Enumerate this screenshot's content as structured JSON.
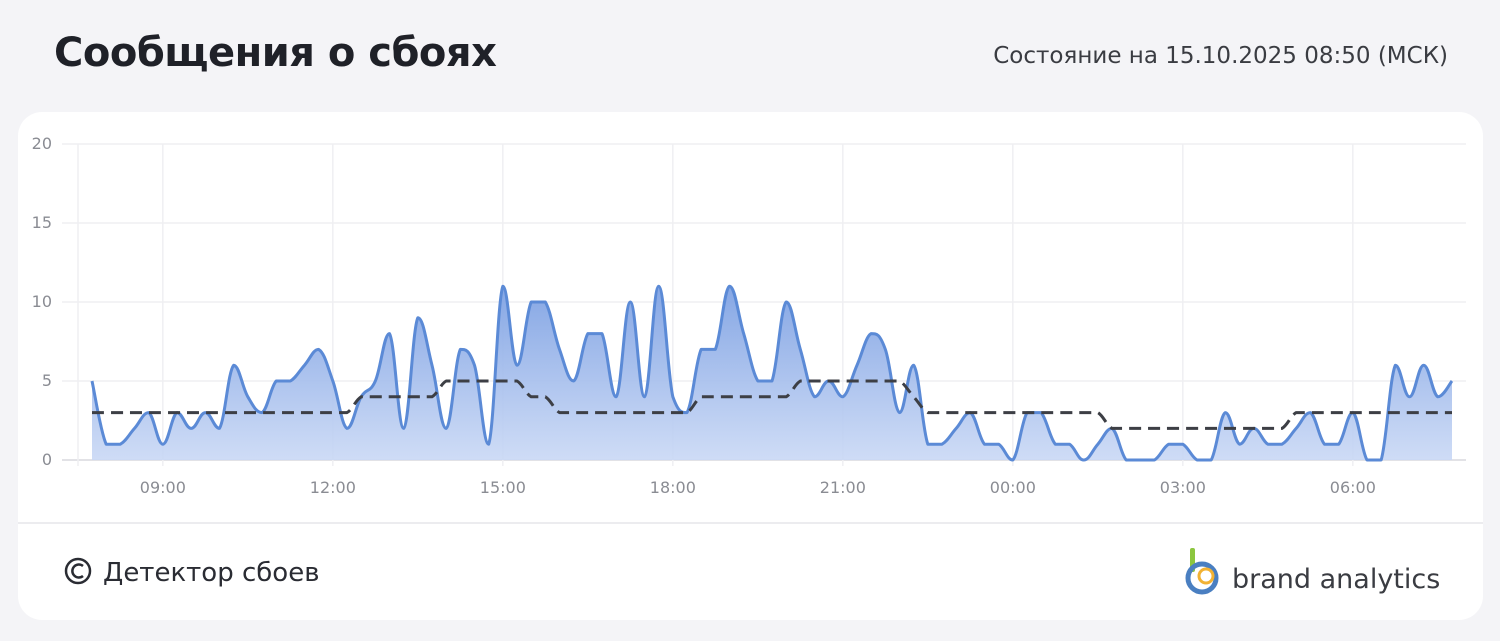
{
  "header": {
    "title": "Сообщения о сбоях",
    "status": "Состояние на 15.10.2025 08:50 (МСК)"
  },
  "chart_data": {
    "type": "line",
    "x": [
      "07:45",
      "08:00",
      "08:15",
      "08:30",
      "08:45",
      "09:00",
      "09:15",
      "09:30",
      "09:45",
      "10:00",
      "10:15",
      "10:30",
      "10:45",
      "11:00",
      "11:15",
      "11:30",
      "11:45",
      "12:00",
      "12:15",
      "12:30",
      "12:45",
      "13:00",
      "13:15",
      "13:30",
      "13:45",
      "14:00",
      "14:15",
      "14:30",
      "14:45",
      "15:00",
      "15:15",
      "15:30",
      "15:45",
      "16:00",
      "16:15",
      "16:30",
      "16:45",
      "17:00",
      "17:15",
      "17:30",
      "17:45",
      "18:00",
      "18:15",
      "18:30",
      "18:45",
      "19:00",
      "19:15",
      "19:30",
      "19:45",
      "20:00",
      "20:15",
      "20:30",
      "20:45",
      "21:00",
      "21:15",
      "21:30",
      "21:45",
      "22:00",
      "22:15",
      "22:30",
      "22:45",
      "23:00",
      "23:15",
      "23:30",
      "23:45",
      "00:00",
      "00:15",
      "00:30",
      "00:45",
      "01:00",
      "01:15",
      "01:30",
      "01:45",
      "02:00",
      "02:15",
      "02:30",
      "02:45",
      "03:00",
      "03:15",
      "03:30",
      "03:45",
      "04:00",
      "04:15",
      "04:30",
      "04:45",
      "05:00",
      "05:15",
      "05:30",
      "05:45",
      "06:00",
      "06:15",
      "06:30",
      "06:45",
      "07:00",
      "07:15",
      "07:30",
      "07:45"
    ],
    "xticks": [
      "09:00",
      "12:00",
      "15:00",
      "18:00",
      "21:00",
      "00:00",
      "03:00",
      "06:00"
    ],
    "ylim": [
      0,
      20
    ],
    "yticks": [
      0,
      5,
      10,
      15,
      20
    ],
    "grid": true,
    "series": [
      {
        "color": "#5b8ad6",
        "fill": true,
        "dashed": false,
        "values": [
          5,
          1,
          1,
          2,
          3,
          1,
          3,
          2,
          3,
          2,
          6,
          4,
          3,
          5,
          5,
          6,
          7,
          5,
          2,
          4,
          5,
          8,
          2,
          9,
          6,
          2,
          7,
          6,
          1,
          11,
          6,
          10,
          10,
          7,
          5,
          8,
          8,
          4,
          10,
          4,
          11,
          4,
          3,
          7,
          7,
          11,
          8,
          5,
          5,
          10,
          7,
          4,
          5,
          4,
          6,
          8,
          7,
          3,
          6,
          1,
          1,
          2,
          3,
          1,
          1,
          0,
          3,
          3,
          1,
          1,
          0,
          1,
          2,
          0,
          0,
          0,
          1,
          1,
          0,
          0,
          3,
          1,
          2,
          1,
          1,
          2,
          3,
          1,
          1,
          3,
          0,
          0,
          6,
          4,
          6,
          4,
          5
        ]
      },
      {
        "color": "#3d3f45",
        "fill": false,
        "dashed": true,
        "values": [
          3,
          3,
          3,
          3,
          3,
          3,
          3,
          3,
          3,
          3,
          3,
          3,
          3,
          3,
          3,
          3,
          3,
          3,
          3,
          4,
          4,
          4,
          4,
          4,
          4,
          5,
          5,
          5,
          5,
          5,
          5,
          4,
          4,
          3,
          3,
          3,
          3,
          3,
          3,
          3,
          3,
          3,
          3,
          4,
          4,
          4,
          4,
          4,
          4,
          4,
          5,
          5,
          5,
          5,
          5,
          5,
          5,
          5,
          4,
          3,
          3,
          3,
          3,
          3,
          3,
          3,
          3,
          3,
          3,
          3,
          3,
          3,
          2,
          2,
          2,
          2,
          2,
          2,
          2,
          2,
          2,
          2,
          2,
          2,
          2,
          3,
          3,
          3,
          3,
          3,
          3,
          3,
          3,
          3,
          3,
          3,
          3
        ]
      }
    ]
  },
  "footer": {
    "source": "Детектор сбоев",
    "brand": "brand analytics"
  }
}
